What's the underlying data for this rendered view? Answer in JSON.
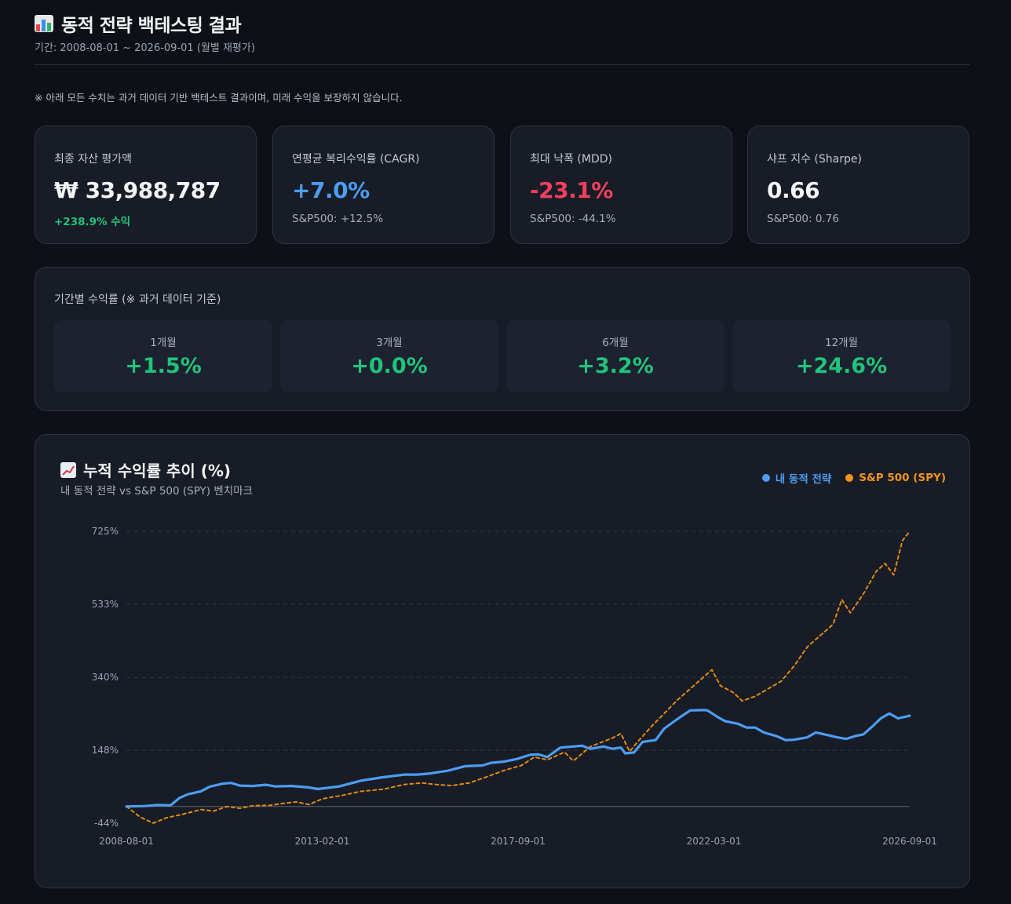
{
  "header": {
    "title": "동적 전략 백테스팅 결과",
    "period": "기간: 2008-08-01 ~ 2026-09-01 (월별 재평가)"
  },
  "disclaimer": "※ 아래 모든 수치는 과거 데이터 기반 백테스트 결과이며, 미래 수익을 보장하지 않습니다.",
  "stats": [
    {
      "label": "최종 자산 평가액",
      "value": "₩ 33,988,787",
      "sub": "+238.9% 수익",
      "value_color": "#f3f4f6",
      "sub_color": "#22c37a"
    },
    {
      "label": "연평균 복리수익률 (CAGR)",
      "value": "+7.0%",
      "sub": "S&P500: +12.5%",
      "value_color": "#4c9df2",
      "sub_color": "#a7afbb"
    },
    {
      "label": "최대 낙폭 (MDD)",
      "value": "-23.1%",
      "sub": "S&P500: -44.1%",
      "value_color": "#f43f5e",
      "sub_color": "#a7afbb"
    },
    {
      "label": "샤프 지수 (Sharpe)",
      "value": "0.66",
      "sub": "S&P500: 0.76",
      "value_color": "#f3f4f6",
      "sub_color": "#a7afbb"
    }
  ],
  "periods": {
    "label": "기간별 수익률 (※ 과거 데이터 기준)",
    "items": [
      {
        "label": "1개월",
        "value": "+1.5%"
      },
      {
        "label": "3개월",
        "value": "+0.0%"
      },
      {
        "label": "6개월",
        "value": "+3.2%"
      },
      {
        "label": "12개월",
        "value": "+24.6%"
      }
    ]
  },
  "chart": {
    "title": "누적 수익률 추이 (%)",
    "subtitle": "내 동적 전략 vs S&P 500 (SPY) 벤치마크",
    "legend": [
      {
        "name": "내 동적 전략",
        "color": "#4c9df2"
      },
      {
        "name": "S&P 500 (SPY)",
        "color": "#f7931a"
      }
    ]
  },
  "chart_data": {
    "type": "line",
    "title": "누적 수익률 추이 (%)",
    "x_ticks": [
      "2008-08-01",
      "2013-02-01",
      "2017-09-01",
      "2022-03-01",
      "2026-09-01"
    ],
    "y_ticks": [
      "725%",
      "533%",
      "340%",
      "148%",
      "-44%"
    ],
    "y_tick_values": [
      725,
      533,
      340,
      148,
      -44
    ],
    "ylim": [
      -44,
      725
    ],
    "xlim": [
      2008.58,
      2026.67
    ],
    "grid": "horizontal dashed",
    "legend_position": "top-right",
    "series": [
      {
        "name": "내 동적 전략",
        "color": "#4c9df2",
        "style": "solid",
        "points": [
          [
            2008.58,
            0
          ],
          [
            2009.0,
            1
          ],
          [
            2009.3,
            4
          ],
          [
            2009.6,
            3
          ],
          [
            2009.8,
            22
          ],
          [
            2010.0,
            32
          ],
          [
            2010.3,
            40
          ],
          [
            2010.5,
            52
          ],
          [
            2010.8,
            60
          ],
          [
            2011.0,
            62
          ],
          [
            2011.2,
            55
          ],
          [
            2011.5,
            54
          ],
          [
            2011.8,
            57
          ],
          [
            2012.0,
            53
          ],
          [
            2012.4,
            54
          ],
          [
            2012.8,
            50
          ],
          [
            2013.0,
            46
          ],
          [
            2013.5,
            53
          ],
          [
            2014.0,
            68
          ],
          [
            2014.5,
            77
          ],
          [
            2015.0,
            84
          ],
          [
            2015.3,
            84
          ],
          [
            2015.6,
            87
          ],
          [
            2016.0,
            94
          ],
          [
            2016.4,
            106
          ],
          [
            2016.8,
            108
          ],
          [
            2017.0,
            115
          ],
          [
            2017.3,
            118
          ],
          [
            2017.6,
            125
          ],
          [
            2017.9,
            136
          ],
          [
            2018.1,
            137
          ],
          [
            2018.3,
            130
          ],
          [
            2018.6,
            155
          ],
          [
            2018.9,
            158
          ],
          [
            2019.1,
            160
          ],
          [
            2019.3,
            152
          ],
          [
            2019.6,
            158
          ],
          [
            2019.8,
            152
          ],
          [
            2020.0,
            155
          ],
          [
            2020.1,
            140
          ],
          [
            2020.3,
            142
          ],
          [
            2020.5,
            170
          ],
          [
            2020.8,
            175
          ],
          [
            2021.0,
            205
          ],
          [
            2021.3,
            230
          ],
          [
            2021.6,
            253
          ],
          [
            2021.9,
            254
          ],
          [
            2022.0,
            253
          ],
          [
            2022.2,
            238
          ],
          [
            2022.4,
            225
          ],
          [
            2022.7,
            218
          ],
          [
            2022.9,
            208
          ],
          [
            2023.1,
            208
          ],
          [
            2023.3,
            195
          ],
          [
            2023.6,
            185
          ],
          [
            2023.8,
            175
          ],
          [
            2024.0,
            176
          ],
          [
            2024.3,
            182
          ],
          [
            2024.5,
            195
          ],
          [
            2024.7,
            190
          ],
          [
            2025.0,
            182
          ],
          [
            2025.2,
            178
          ],
          [
            2025.4,
            185
          ],
          [
            2025.6,
            190
          ],
          [
            2025.8,
            210
          ],
          [
            2026.0,
            232
          ],
          [
            2026.2,
            245
          ],
          [
            2026.4,
            232
          ],
          [
            2026.67,
            239
          ]
        ]
      },
      {
        "name": "S&P 500 (SPY)",
        "color": "#f7931a",
        "style": "dashed",
        "points": [
          [
            2008.58,
            0
          ],
          [
            2008.9,
            -28
          ],
          [
            2009.2,
            -44
          ],
          [
            2009.5,
            -30
          ],
          [
            2009.9,
            -20
          ],
          [
            2010.3,
            -8
          ],
          [
            2010.6,
            -12
          ],
          [
            2010.9,
            0
          ],
          [
            2011.2,
            -5
          ],
          [
            2011.5,
            2
          ],
          [
            2011.9,
            3
          ],
          [
            2012.2,
            8
          ],
          [
            2012.5,
            12
          ],
          [
            2012.8,
            5
          ],
          [
            2013.1,
            20
          ],
          [
            2013.6,
            30
          ],
          [
            2014.0,
            40
          ],
          [
            2014.5,
            45
          ],
          [
            2015.0,
            58
          ],
          [
            2015.4,
            62
          ],
          [
            2015.8,
            57
          ],
          [
            2016.1,
            55
          ],
          [
            2016.5,
            62
          ],
          [
            2016.9,
            78
          ],
          [
            2017.3,
            95
          ],
          [
            2017.7,
            108
          ],
          [
            2018.0,
            130
          ],
          [
            2018.3,
            123
          ],
          [
            2018.7,
            143
          ],
          [
            2018.9,
            120
          ],
          [
            2019.3,
            158
          ],
          [
            2019.8,
            180
          ],
          [
            2020.0,
            192
          ],
          [
            2020.2,
            145
          ],
          [
            2020.4,
            172
          ],
          [
            2020.7,
            210
          ],
          [
            2021.0,
            245
          ],
          [
            2021.3,
            280
          ],
          [
            2021.6,
            310
          ],
          [
            2021.9,
            340
          ],
          [
            2022.1,
            360
          ],
          [
            2022.3,
            318
          ],
          [
            2022.6,
            300
          ],
          [
            2022.8,
            278
          ],
          [
            2023.1,
            290
          ],
          [
            2023.4,
            310
          ],
          [
            2023.7,
            330
          ],
          [
            2024.0,
            370
          ],
          [
            2024.3,
            420
          ],
          [
            2024.6,
            450
          ],
          [
            2024.9,
            480
          ],
          [
            2025.1,
            545
          ],
          [
            2025.3,
            510
          ],
          [
            2025.6,
            560
          ],
          [
            2025.9,
            620
          ],
          [
            2026.1,
            640
          ],
          [
            2026.3,
            610
          ],
          [
            2026.5,
            700
          ],
          [
            2026.67,
            725
          ]
        ]
      }
    ]
  }
}
